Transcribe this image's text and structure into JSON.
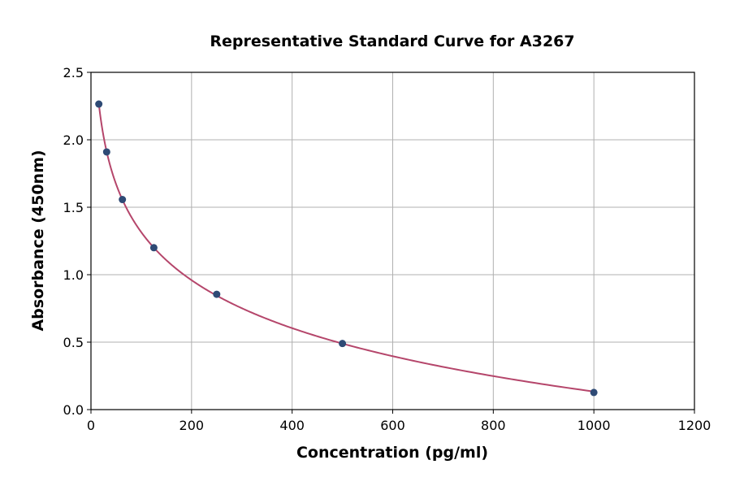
{
  "chart_data": {
    "type": "scatter",
    "title": "Representative Standard Curve for A3267",
    "xlabel": "Concentration (pg/ml)",
    "ylabel": "Absorbance (450nm)",
    "xlim": [
      0,
      1200
    ],
    "ylim": [
      0,
      2.5
    ],
    "xticks": [
      "0",
      "200",
      "400",
      "600",
      "800",
      "1000",
      "1200"
    ],
    "yticks": [
      "0.0",
      "0.5",
      "1.0",
      "1.5",
      "2.0",
      "2.5"
    ],
    "grid": true,
    "x": [
      15.625,
      31.25,
      62.5,
      125,
      250,
      500,
      1000
    ],
    "y": [
      2.265,
      1.91,
      1.557,
      1.2,
      0.855,
      0.49,
      0.127
    ],
    "fit_curve": "log",
    "colors": {
      "points": "#2e4a75",
      "curve": "#b5466b",
      "grid": "#b0b0b0"
    }
  }
}
